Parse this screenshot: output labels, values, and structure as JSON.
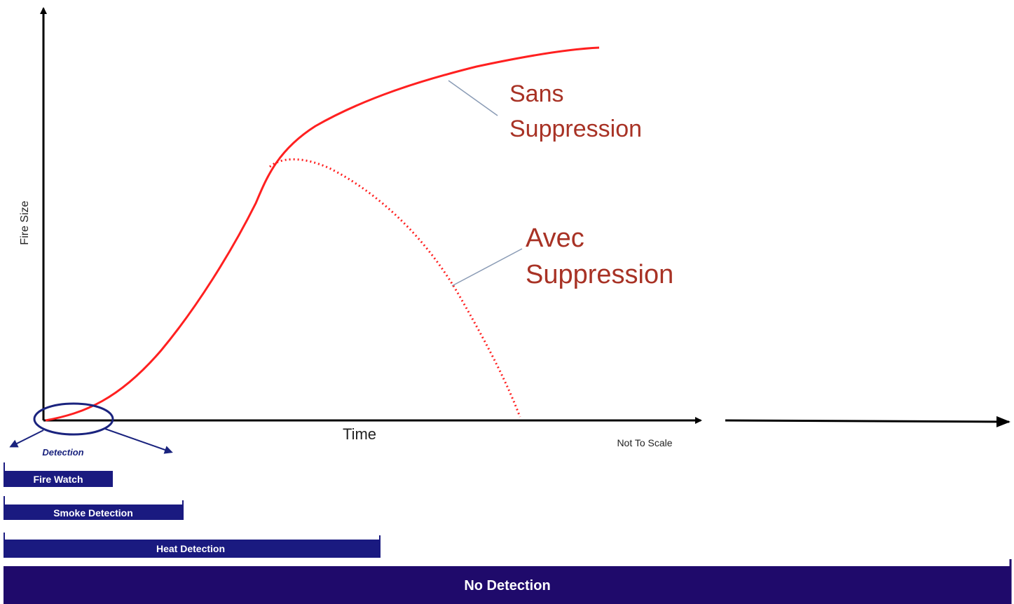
{
  "axes": {
    "y_label": "Fire Size",
    "x_label": "Time",
    "scale_note": "Not To Scale"
  },
  "curves": [
    {
      "label_lines": [
        "Sans",
        "Suppression"
      ]
    },
    {
      "label_lines": [
        "Avec",
        "Suppression"
      ]
    }
  ],
  "detection_label": "Detection",
  "bars": [
    {
      "label": "Fire Watch"
    },
    {
      "label": "Smoke Detection"
    },
    {
      "label": "Heat Detection"
    },
    {
      "label": "No Detection"
    }
  ]
}
